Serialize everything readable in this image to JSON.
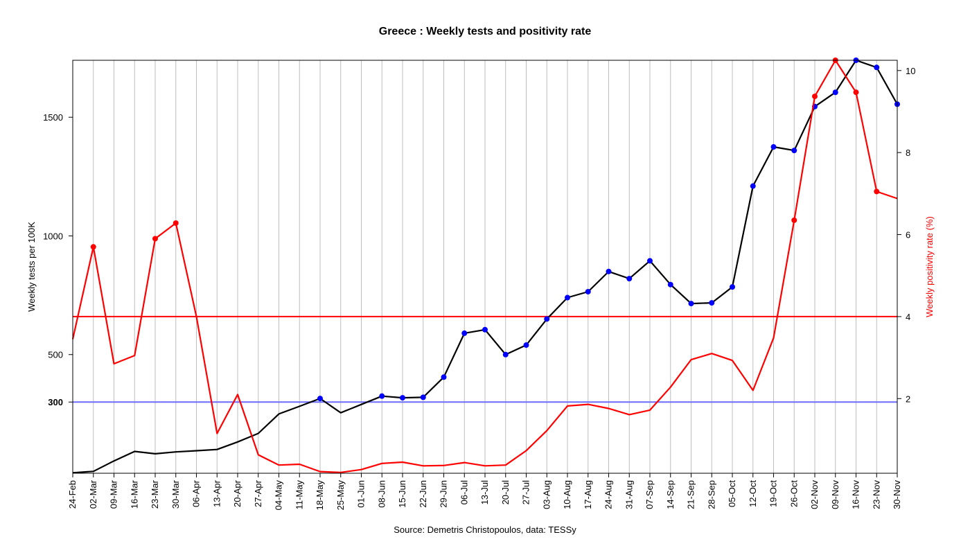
{
  "chart_data": {
    "type": "line",
    "title": "Greece : Weekly tests and positivity rate",
    "caption": "Source: Demetris Christopoulos, data: TESSy",
    "categories": [
      "24-Feb",
      "02-Mar",
      "09-Mar",
      "16-Mar",
      "23-Mar",
      "30-Mar",
      "06-Apr",
      "13-Apr",
      "20-Apr",
      "27-Apr",
      "04-May",
      "11-May",
      "18-May",
      "25-May",
      "01-Jun",
      "08-Jun",
      "15-Jun",
      "22-Jun",
      "29-Jun",
      "06-Jul",
      "13-Jul",
      "20-Jul",
      "27-Jul",
      "03-Aug",
      "10-Aug",
      "17-Aug",
      "24-Aug",
      "31-Aug",
      "07-Sep",
      "14-Sep",
      "21-Sep",
      "28-Sep",
      "05-Oct",
      "12-Oct",
      "19-Oct",
      "26-Oct",
      "02-Nov",
      "09-Nov",
      "16-Nov",
      "23-Nov",
      "30-Nov"
    ],
    "left_axis": {
      "label": "Weekly tests per 100K",
      "range": [
        0,
        1740
      ],
      "ticks": [
        500,
        1000,
        1500
      ],
      "bold_ticks": [
        300
      ]
    },
    "right_axis": {
      "label": "Weekly positivity rate (%)",
      "range": [
        0.18,
        10.25
      ],
      "ticks": [
        2,
        4,
        6,
        8,
        10
      ]
    },
    "grid": "vertical",
    "series": [
      {
        "axis": "left",
        "color": "#000000",
        "marker_color": "#0000ff",
        "values": [
          2,
          8,
          52,
          92,
          82,
          90,
          95,
          100,
          132,
          168,
          250,
          282,
          315,
          255,
          290,
          325,
          318,
          320,
          405,
          590,
          605,
          500,
          540,
          650,
          740,
          765,
          850,
          820,
          895,
          795,
          715,
          718,
          785,
          1210,
          1375,
          1360,
          1545,
          1605,
          1740,
          1710,
          1555
        ],
        "markers": [
          false,
          false,
          false,
          false,
          false,
          false,
          false,
          false,
          false,
          false,
          false,
          false,
          true,
          false,
          false,
          true,
          true,
          true,
          true,
          true,
          true,
          true,
          true,
          true,
          true,
          true,
          true,
          true,
          true,
          true,
          true,
          true,
          true,
          true,
          true,
          true,
          true,
          true,
          true,
          true,
          true
        ]
      },
      {
        "axis": "right",
        "color": "#ff0000",
        "marker_color": "#ff0000",
        "values": [
          3.45,
          5.7,
          2.85,
          3.05,
          5.9,
          6.28,
          4.0,
          1.15,
          2.1,
          0.63,
          0.38,
          0.4,
          0.22,
          0.2,
          0.27,
          0.42,
          0.45,
          0.36,
          0.37,
          0.44,
          0.36,
          0.38,
          0.73,
          1.22,
          1.82,
          1.86,
          1.76,
          1.61,
          1.72,
          2.28,
          2.95,
          3.1,
          2.93,
          2.2,
          3.48,
          6.35,
          9.37,
          10.25,
          9.47,
          7.05,
          6.88
        ],
        "markers": [
          false,
          true,
          false,
          false,
          true,
          true,
          false,
          false,
          false,
          false,
          false,
          false,
          false,
          false,
          false,
          false,
          false,
          false,
          false,
          false,
          false,
          false,
          false,
          false,
          false,
          false,
          false,
          false,
          false,
          false,
          false,
          false,
          false,
          false,
          false,
          true,
          true,
          true,
          true,
          true,
          false
        ]
      }
    ],
    "reference_lines": [
      {
        "axis": "left",
        "value": 300,
        "color": "#6b6bff"
      },
      {
        "axis": "right",
        "value": 4,
        "color": "#ff0000"
      }
    ]
  }
}
